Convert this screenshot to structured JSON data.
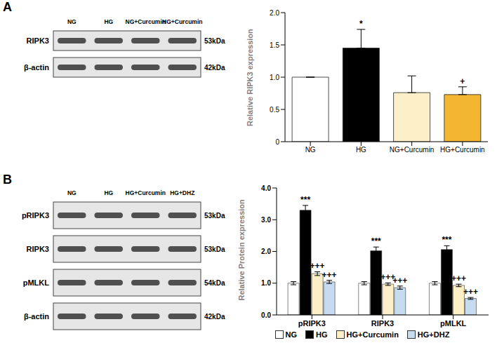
{
  "panel_labels": [
    "A",
    "B"
  ],
  "blots": [
    {
      "lanes": [
        "NG",
        "HG",
        "NG+Curcumin",
        "HG+Curcumin"
      ],
      "rows": [
        {
          "name": "RIPK3",
          "size": "53kDa"
        },
        {
          "name": "β-actin",
          "size": "42kDa"
        }
      ]
    },
    {
      "lanes": [
        "NG",
        "HG",
        "HG+Curcumin",
        "HG+DHZ"
      ],
      "rows": [
        {
          "name": "pRIPK3",
          "size": "53kDa"
        },
        {
          "name": "RIPK3",
          "size": "53kDa"
        },
        {
          "name": "pMLKL",
          "size": "54kDa"
        },
        {
          "name": "β-actin",
          "size": "42kDa"
        }
      ]
    }
  ],
  "chart_data": [
    {
      "type": "bar",
      "y_label": "Relative RIPK3 expression",
      "categories": [
        "NG",
        "HG",
        "NG+Curcumin",
        "HG+Curcumin"
      ],
      "values": [
        1.0,
        1.45,
        0.76,
        0.73
      ],
      "errors": [
        0,
        0.29,
        0.26,
        0.12
      ],
      "annotations": [
        null,
        "*",
        null,
        "+"
      ],
      "colors": [
        "#ffffff",
        "#000000",
        "#fdf0c8",
        "#f2b631"
      ],
      "ylim": [
        0,
        2
      ],
      "yticks": [
        0,
        0.5,
        {
          "value": 1,
          "label": "1.0"
        },
        1.5,
        {
          "value": 2,
          "label": "2.0"
        }
      ]
    },
    {
      "type": "bar",
      "y_label": "Relative Protein expression",
      "categories": [
        "pRIPK3",
        "RIPK3",
        "pMLKL"
      ],
      "series": [
        {
          "name": "NG",
          "color": "#ffffff",
          "values": [
            1.0,
            1.0,
            1.0
          ],
          "errors": [
            0.05,
            0.05,
            0.05
          ],
          "annotations": [
            null,
            null,
            null
          ]
        },
        {
          "name": "HG",
          "color": "#000000",
          "values": [
            3.3,
            2.02,
            2.06
          ],
          "errors": [
            0.15,
            0.12,
            0.12
          ],
          "annotations": [
            "***",
            "***",
            "***"
          ]
        },
        {
          "name": "HG+Curcumin",
          "color": "#fdf0c8",
          "values": [
            1.3,
            0.97,
            0.93
          ],
          "errors": [
            0.06,
            0.04,
            0.04
          ],
          "annotations": [
            "+++",
            "+++",
            "+++"
          ]
        },
        {
          "name": "HG+DHZ",
          "color": "#c6dbef",
          "values": [
            1.04,
            0.86,
            0.52
          ],
          "errors": [
            0.05,
            0.05,
            0.03
          ],
          "annotations": [
            "+++",
            "+++",
            "+++"
          ]
        }
      ],
      "ylim": [
        0,
        4
      ],
      "yticks": [
        {
          "value": 0,
          "label": "0.0"
        },
        {
          "value": 1,
          "label": "1.0"
        },
        {
          "value": 2,
          "label": "2.0"
        },
        {
          "value": 3,
          "label": "3.0"
        },
        {
          "value": 4,
          "label": "4.0"
        }
      ],
      "legend": "bottom"
    }
  ]
}
